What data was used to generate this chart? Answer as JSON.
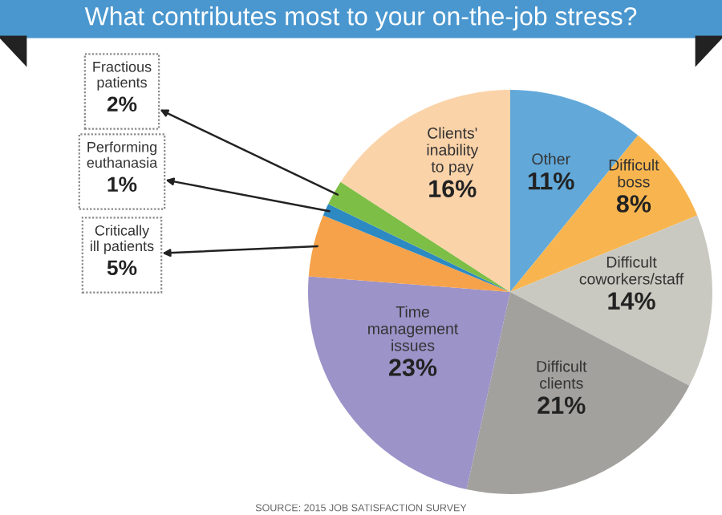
{
  "chart_data": {
    "type": "pie",
    "title": "What contributes most to your on-the-job stress?",
    "categories": [
      "Other",
      "Difficult boss",
      "Difficult coworkers/staff",
      "Difficult clients",
      "Time management issues",
      "Critically ill patients",
      "Performing euthanasia",
      "Fractious patients",
      "Clients' inability to pay"
    ],
    "values": [
      11,
      8,
      14,
      21,
      23,
      5,
      1,
      2,
      16
    ],
    "colors": [
      "#62a9da",
      "#f8b54f",
      "#c9c9c1",
      "#a2a19d",
      "#9c93c9",
      "#f5a24a",
      "#2d89c2",
      "#7dbf46",
      "#fbd3a9"
    ],
    "value_labels": [
      "11%",
      "8%",
      "14%",
      "21%",
      "23%",
      "5%",
      "1%",
      "2%",
      "16%"
    ],
    "annotations": [
      "SOURCE: 2015 JOB SATISFACTION SURVEY"
    ]
  }
}
